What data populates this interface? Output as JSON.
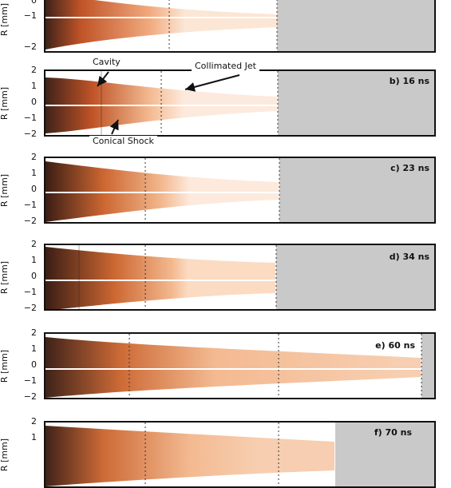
{
  "figure": {
    "ylabel": "R [mm]",
    "yticks": [
      "2",
      "1",
      "0",
      "−1",
      "−2"
    ],
    "panels": [
      {
        "id": "a",
        "label": "",
        "grey_from": 0.59
      },
      {
        "id": "b",
        "label": "b) 16 ns",
        "grey_from": 0.6
      },
      {
        "id": "c",
        "label": "c) 23 ns",
        "grey_from": 0.6
      },
      {
        "id": "d",
        "label": "d) 34 ns",
        "grey_from": 0.59
      },
      {
        "id": "e",
        "label": "e) 60 ns",
        "grey_from": 0.96
      },
      {
        "id": "f",
        "label": "f) 70 ns",
        "grey_from": 0.74
      }
    ],
    "annotations": {
      "cavity": "Cavity",
      "collimated_jet": "Collimated Jet",
      "conical_shock": "Conical Shock"
    },
    "colors": {
      "hot": "#2a0a00",
      "mid": "#c8501a",
      "light": "#f5c6a0",
      "grey": "#c9c9c9"
    }
  }
}
